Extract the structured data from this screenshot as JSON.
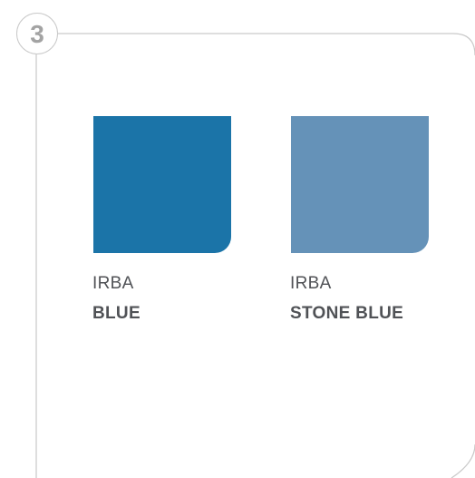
{
  "step": {
    "number": "3"
  },
  "swatches": [
    {
      "prefix": "IRBA",
      "name": "BLUE",
      "color": "#1b74a8"
    },
    {
      "prefix": "IRBA",
      "name": "STONE BLUE",
      "color": "#6592b8"
    }
  ],
  "colors": {
    "frame_line": "#c9c9c9",
    "label_text": "#505256",
    "step_number": "#a3a3a3"
  }
}
